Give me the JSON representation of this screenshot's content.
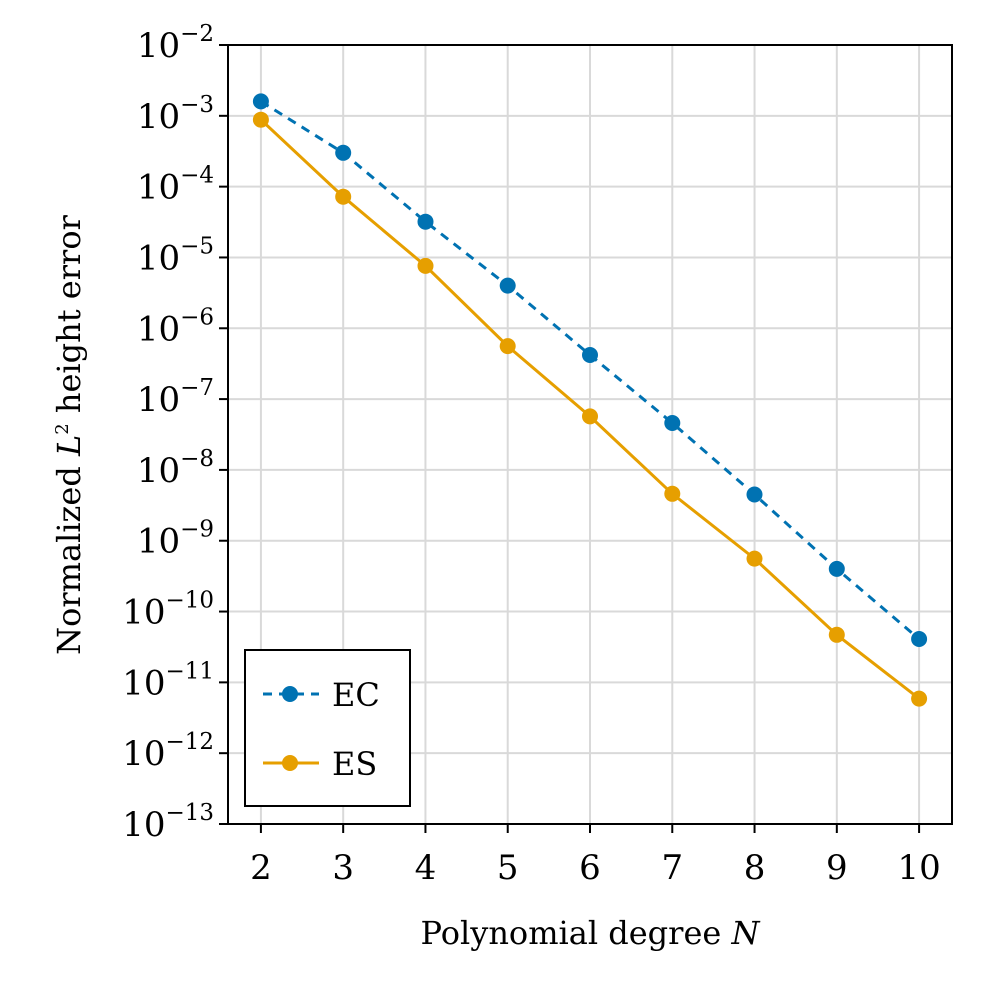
{
  "chart_data": {
    "type": "line",
    "xlabel": "Polynomial degree",
    "xlabel_var": "N",
    "ylabel_prefix": "Normalized",
    "ylabel_var": "L",
    "ylabel_sup": "2",
    "ylabel_suffix": "height error",
    "yscale": "log",
    "x_ticks": [
      2,
      3,
      4,
      5,
      6,
      7,
      8,
      9,
      10
    ],
    "xlim": [
      1.6,
      10.4
    ],
    "y_tick_exponents": [
      -2,
      -3,
      -4,
      -5,
      -6,
      -7,
      -8,
      -9,
      -10,
      -11,
      -12,
      -13
    ],
    "y_tick_base": "10",
    "ylim_exponents": [
      -13,
      -2
    ],
    "grid": true,
    "legend_location": "lower-left",
    "x": [
      2,
      3,
      4,
      5,
      6,
      7,
      8,
      9,
      10
    ],
    "series": [
      {
        "name": "EC",
        "style": "dashed",
        "marker": "circle",
        "color": "#0072b2",
        "values": [
          0.0016,
          0.0003,
          3.2e-05,
          4e-06,
          4.2e-07,
          4.6e-08,
          4.5e-09,
          4e-10,
          4.1e-11
        ]
      },
      {
        "name": "ES",
        "style": "solid",
        "marker": "circle",
        "color": "#e69f00",
        "values": [
          0.00088,
          7.2e-05,
          7.6e-06,
          5.6e-07,
          5.7e-08,
          4.6e-09,
          5.6e-10,
          4.7e-11,
          5.9e-12
        ]
      }
    ]
  }
}
